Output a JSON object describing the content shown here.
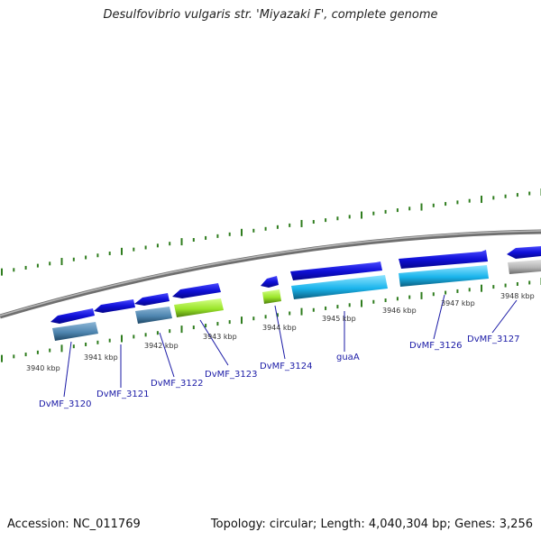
{
  "title": "Desulfovibrio vulgaris str. 'Miyazaki F', complete genome",
  "footer": {
    "accession": "Accession: NC_011769",
    "topology": "Topology: circular; Length: 4,040,304 bp; Genes: 3,256"
  },
  "colors": {
    "backbone": "#8a8a8a",
    "tick": "#2f7d1e",
    "gene_forward": "#1010d8",
    "cds_steelblue": "#4f86b0",
    "cds_green": "#9be52a",
    "cds_cyan": "#1ab4ec",
    "cds_gray": "#b4b4b4",
    "label": "#1a1aa6"
  },
  "scale_labels": [
    "3940 kbp",
    "3941 kbp",
    "3942 kbp",
    "3943 kbp",
    "3944 kbp",
    "3945 kbp",
    "3946 kbp",
    "3947 kbp",
    "3948 kbp"
  ],
  "genes": [
    {
      "name": "DvMF_3120",
      "cds_color": "steelblue"
    },
    {
      "name": "DvMF_3121",
      "cds_color": "none"
    },
    {
      "name": "DvMF_3122",
      "cds_color": "steelblue"
    },
    {
      "name": "DvMF_3123",
      "cds_color": "green"
    },
    {
      "name": "DvMF_3124",
      "cds_color": "green"
    },
    {
      "name": "guaA",
      "cds_color": "cyan"
    },
    {
      "name": "DvMF_3126",
      "cds_color": "cyan"
    },
    {
      "name": "DvMF_3127",
      "cds_color": "gray"
    }
  ]
}
